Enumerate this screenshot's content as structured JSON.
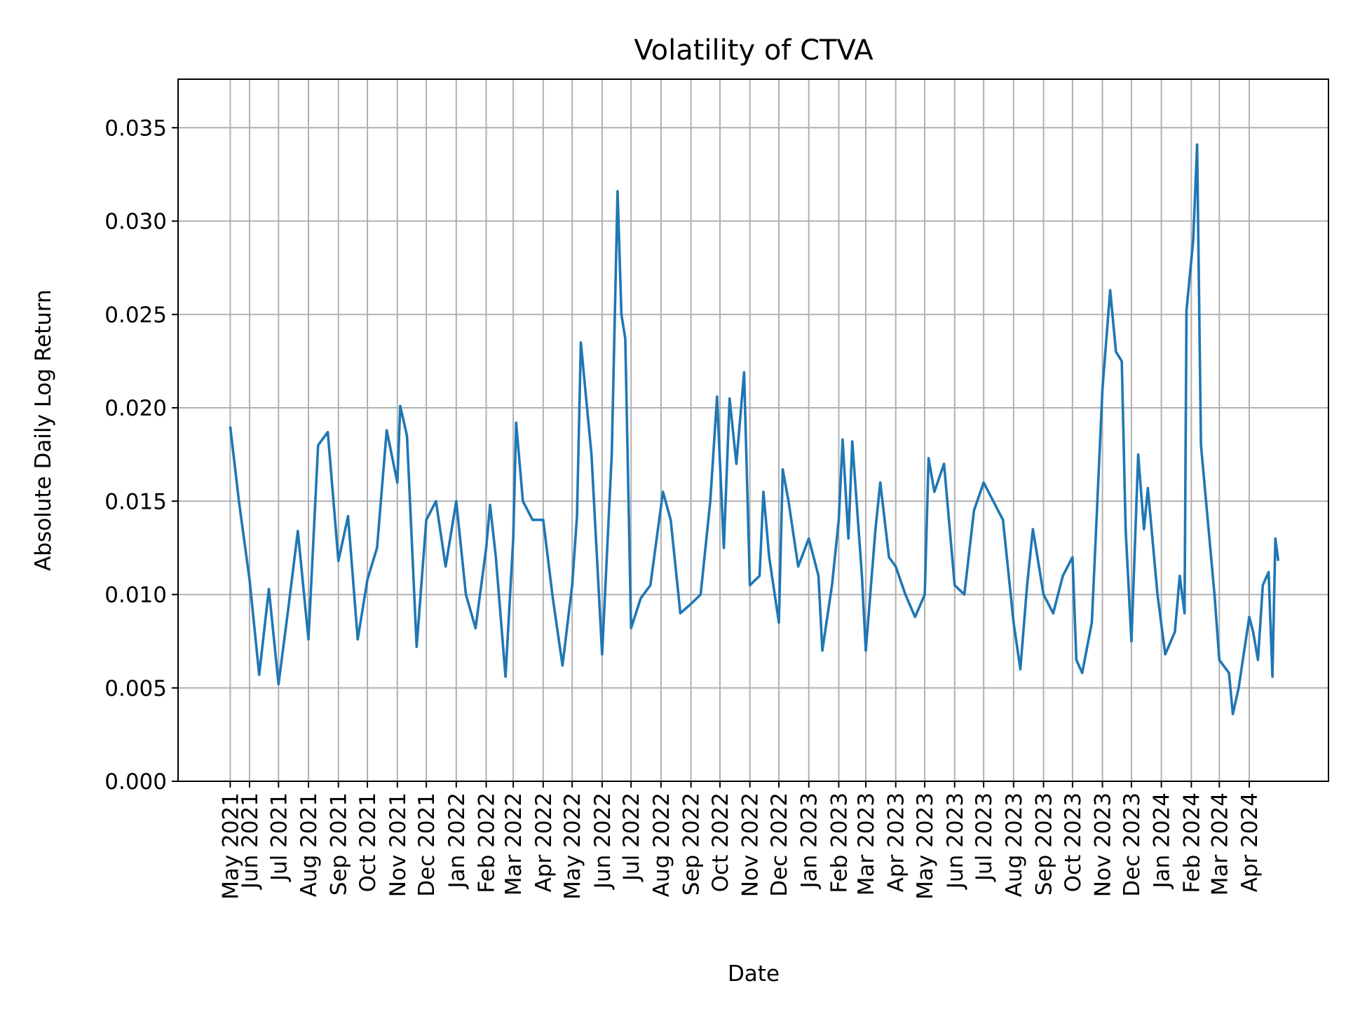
{
  "chart_data": {
    "type": "line",
    "title": "Volatility of CTVA",
    "xlabel": "Date",
    "ylabel": "Absolute Daily Log Return",
    "x": [
      "2021-05-12",
      "2021-05-21",
      "2021-06-01",
      "2021-06-11",
      "2021-06-21",
      "2021-07-01",
      "2021-07-11",
      "2021-07-21",
      "2021-08-01",
      "2021-08-11",
      "2021-08-21",
      "2021-09-01",
      "2021-09-11",
      "2021-09-21",
      "2021-10-01",
      "2021-10-11",
      "2021-10-21",
      "2021-11-01",
      "2021-11-04",
      "2021-11-11",
      "2021-11-21",
      "2021-12-01",
      "2021-12-11",
      "2021-12-21",
      "2022-01-01",
      "2022-01-11",
      "2022-01-21",
      "2022-02-01",
      "2022-02-05",
      "2022-02-11",
      "2022-02-21",
      "2022-03-01",
      "2022-03-04",
      "2022-03-11",
      "2022-03-21",
      "2022-04-01",
      "2022-04-11",
      "2022-04-21",
      "2022-05-01",
      "2022-05-06",
      "2022-05-10",
      "2022-05-21",
      "2022-06-01",
      "2022-06-11",
      "2022-06-17",
      "2022-06-21",
      "2022-06-25",
      "2022-07-01",
      "2022-07-11",
      "2022-07-21",
      "2022-08-03",
      "2022-08-11",
      "2022-08-21",
      "2022-09-01",
      "2022-09-11",
      "2022-09-21",
      "2022-09-28",
      "2022-10-05",
      "2022-10-11",
      "2022-10-18",
      "2022-10-26",
      "2022-11-01",
      "2022-11-11",
      "2022-11-15",
      "2022-11-21",
      "2022-12-01",
      "2022-12-05",
      "2022-12-11",
      "2022-12-21",
      "2023-01-01",
      "2023-01-11",
      "2023-01-15",
      "2023-01-25",
      "2023-02-01",
      "2023-02-05",
      "2023-02-11",
      "2023-02-15",
      "2023-02-25",
      "2023-03-01",
      "2023-03-11",
      "2023-03-16",
      "2023-03-25",
      "2023-04-01",
      "2023-04-11",
      "2023-04-21",
      "2023-05-01",
      "2023-05-05",
      "2023-05-11",
      "2023-05-21",
      "2023-06-01",
      "2023-06-11",
      "2023-06-21",
      "2023-07-01",
      "2023-07-11",
      "2023-07-21",
      "2023-08-01",
      "2023-08-08",
      "2023-08-15",
      "2023-08-21",
      "2023-09-01",
      "2023-09-11",
      "2023-09-21",
      "2023-10-01",
      "2023-10-05",
      "2023-10-11",
      "2023-10-21",
      "2023-10-25",
      "2023-11-01",
      "2023-11-09",
      "2023-11-15",
      "2023-11-21",
      "2023-11-25",
      "2023-12-01",
      "2023-12-08",
      "2023-12-14",
      "2023-12-18",
      "2023-12-28",
      "2024-01-05",
      "2024-01-15",
      "2024-01-20",
      "2024-01-25",
      "2024-01-27",
      "2024-02-03",
      "2024-02-07",
      "2024-02-11",
      "2024-02-18",
      "2024-02-25",
      "2024-03-01",
      "2024-03-11",
      "2024-03-15",
      "2024-03-21",
      "2024-04-01",
      "2024-04-05",
      "2024-04-10",
      "2024-04-15",
      "2024-04-21",
      "2024-04-25",
      "2024-04-28",
      "2024-05-01"
    ],
    "series": [
      {
        "name": "CTVA",
        "color": "#1f77b4",
        "values": [
          0.019,
          0.015,
          0.0108,
          0.0057,
          0.0103,
          0.0052,
          0.0092,
          0.0134,
          0.0076,
          0.018,
          0.0187,
          0.0118,
          0.0142,
          0.0076,
          0.0108,
          0.0125,
          0.0188,
          0.016,
          0.0201,
          0.0185,
          0.0072,
          0.014,
          0.015,
          0.0115,
          0.015,
          0.01,
          0.0082,
          0.0125,
          0.0148,
          0.012,
          0.0056,
          0.013,
          0.0192,
          0.015,
          0.014,
          0.014,
          0.0098,
          0.0062,
          0.0105,
          0.0142,
          0.0235,
          0.0175,
          0.0068,
          0.0175,
          0.0316,
          0.025,
          0.0237,
          0.0082,
          0.0098,
          0.0105,
          0.0155,
          0.014,
          0.009,
          0.0095,
          0.01,
          0.015,
          0.0206,
          0.0125,
          0.0205,
          0.017,
          0.0219,
          0.0105,
          0.011,
          0.0155,
          0.012,
          0.0085,
          0.0167,
          0.015,
          0.0115,
          0.013,
          0.011,
          0.007,
          0.0105,
          0.014,
          0.0183,
          0.013,
          0.0182,
          0.011,
          0.007,
          0.0135,
          0.016,
          0.012,
          0.0115,
          0.01,
          0.0088,
          0.01,
          0.0173,
          0.0155,
          0.017,
          0.0105,
          0.01,
          0.0145,
          0.016,
          0.015,
          0.014,
          0.0085,
          0.006,
          0.0105,
          0.0135,
          0.01,
          0.009,
          0.011,
          0.012,
          0.0065,
          0.0058,
          0.0085,
          0.013,
          0.021,
          0.0263,
          0.023,
          0.0225,
          0.0135,
          0.0075,
          0.0175,
          0.0135,
          0.0157,
          0.01,
          0.0068,
          0.008,
          0.011,
          0.009,
          0.0252,
          0.029,
          0.0341,
          0.018,
          0.014,
          0.01,
          0.0065,
          0.0058,
          0.0036,
          0.005,
          0.0088,
          0.008,
          0.0065,
          0.0105,
          0.0112,
          0.0056,
          0.013,
          0.0118
        ]
      }
    ],
    "xlim": [
      "2021-03-19",
      "2024-06-22"
    ],
    "xticks": [
      {
        "value": "2021-05-12",
        "label": "May 2021"
      },
      {
        "value": "2021-06-01",
        "label": "Jun 2021"
      },
      {
        "value": "2021-07-01",
        "label": "Jul 2021"
      },
      {
        "value": "2021-08-01",
        "label": "Aug 2021"
      },
      {
        "value": "2021-09-01",
        "label": "Sep 2021"
      },
      {
        "value": "2021-10-01",
        "label": "Oct 2021"
      },
      {
        "value": "2021-11-01",
        "label": "Nov 2021"
      },
      {
        "value": "2021-12-01",
        "label": "Dec 2021"
      },
      {
        "value": "2022-01-01",
        "label": "Jan 2022"
      },
      {
        "value": "2022-02-01",
        "label": "Feb 2022"
      },
      {
        "value": "2022-03-01",
        "label": "Mar 2022"
      },
      {
        "value": "2022-04-01",
        "label": "Apr 2022"
      },
      {
        "value": "2022-05-01",
        "label": "May 2022"
      },
      {
        "value": "2022-06-01",
        "label": "Jun 2022"
      },
      {
        "value": "2022-07-01",
        "label": "Jul 2022"
      },
      {
        "value": "2022-08-01",
        "label": "Aug 2022"
      },
      {
        "value": "2022-09-01",
        "label": "Sep 2022"
      },
      {
        "value": "2022-10-01",
        "label": "Oct 2022"
      },
      {
        "value": "2022-11-01",
        "label": "Nov 2022"
      },
      {
        "value": "2022-12-01",
        "label": "Dec 2022"
      },
      {
        "value": "2023-01-01",
        "label": "Jan 2023"
      },
      {
        "value": "2023-02-01",
        "label": "Feb 2023"
      },
      {
        "value": "2023-03-01",
        "label": "Mar 2023"
      },
      {
        "value": "2023-04-01",
        "label": "Apr 2023"
      },
      {
        "value": "2023-05-01",
        "label": "May 2023"
      },
      {
        "value": "2023-06-01",
        "label": "Jun 2023"
      },
      {
        "value": "2023-07-01",
        "label": "Jul 2023"
      },
      {
        "value": "2023-08-01",
        "label": "Aug 2023"
      },
      {
        "value": "2023-09-01",
        "label": "Sep 2023"
      },
      {
        "value": "2023-10-01",
        "label": "Oct 2023"
      },
      {
        "value": "2023-11-01",
        "label": "Nov 2023"
      },
      {
        "value": "2023-12-01",
        "label": "Dec 2023"
      },
      {
        "value": "2024-01-01",
        "label": "Jan 2024"
      },
      {
        "value": "2024-02-01",
        "label": "Feb 2024"
      },
      {
        "value": "2024-03-01",
        "label": "Mar 2024"
      },
      {
        "value": "2024-04-01",
        "label": "Apr 2024"
      }
    ],
    "ylim": [
      0,
      0.0376
    ],
    "yticks": [
      {
        "value": 0,
        "label": "0.000"
      },
      0.005,
      {
        "value": 0.01,
        "label": "0.010"
      },
      0.015,
      {
        "value": 0.02,
        "label": "0.020"
      },
      0.025,
      {
        "value": 0.03,
        "label": "0.030"
      },
      0.035
    ],
    "grid": true
  }
}
